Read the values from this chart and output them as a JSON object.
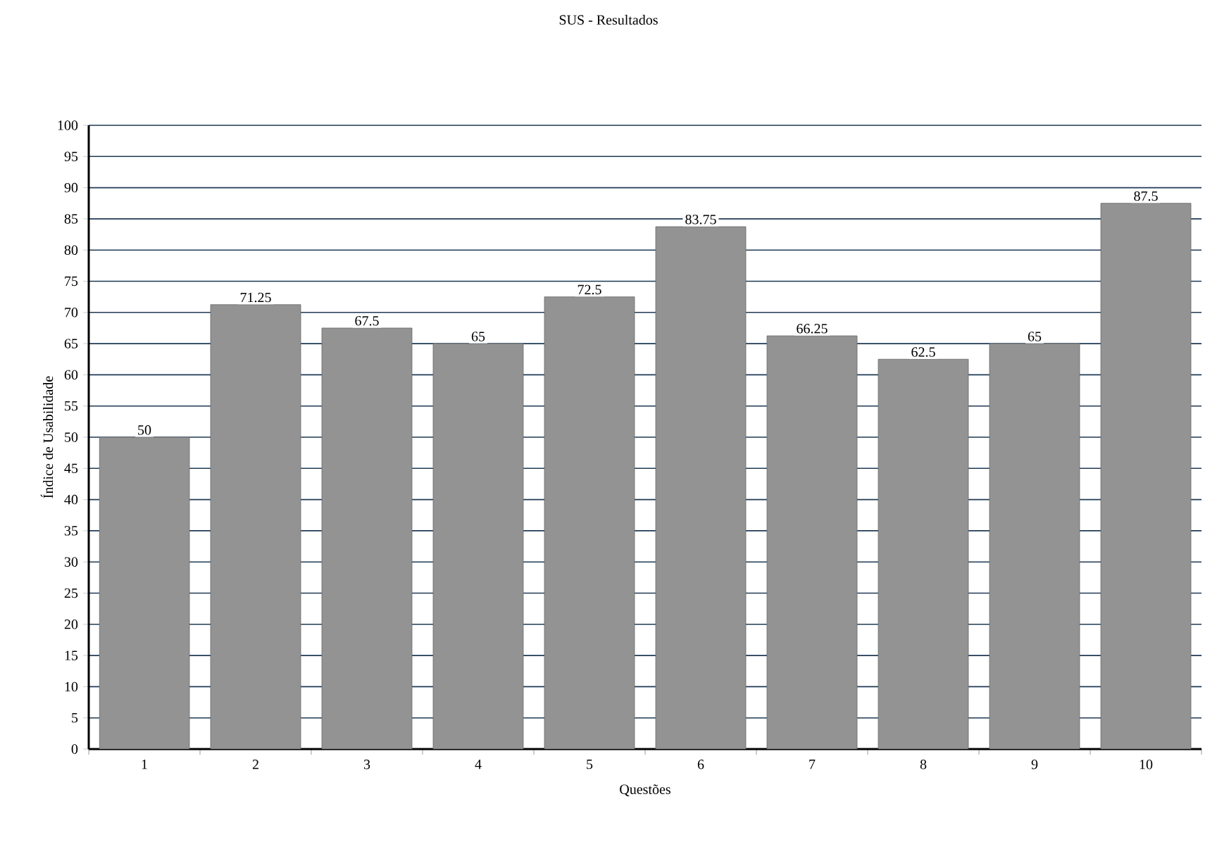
{
  "chart_data": {
    "type": "bar",
    "title": "SUS - Resultados",
    "xlabel": "Questões",
    "ylabel": "Índice de Usabilidade",
    "categories": [
      "1",
      "2",
      "3",
      "4",
      "5",
      "6",
      "7",
      "8",
      "9",
      "10"
    ],
    "values": [
      50,
      71.25,
      67.5,
      65,
      72.5,
      83.75,
      66.25,
      62.5,
      65,
      87.5
    ],
    "color": "#939393",
    "ylim": [
      0,
      100
    ],
    "yticks": [
      0,
      5,
      10,
      15,
      20,
      25,
      30,
      35,
      40,
      45,
      50,
      55,
      60,
      65,
      70,
      75,
      80,
      85,
      90,
      95,
      100
    ],
    "grid": "y",
    "data_labels": true
  }
}
